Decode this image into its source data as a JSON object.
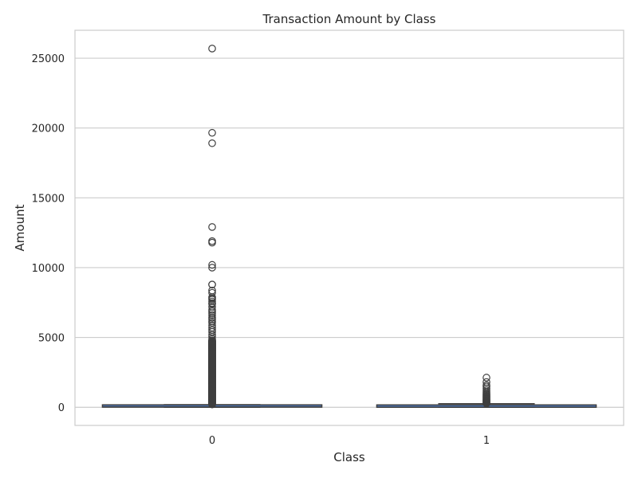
{
  "chart_data": {
    "type": "box",
    "title": "Transaction Amount by Class",
    "xlabel": "Class",
    "ylabel": "Amount",
    "categories": [
      "0",
      "1"
    ],
    "ylim": [
      -1300,
      27000
    ],
    "yticks": [
      0,
      5000,
      10000,
      15000,
      20000,
      25000
    ],
    "grid": true,
    "colors": {
      "box_fill": "#4c72b0",
      "line": "#3f3f3f",
      "grid": "#cccccc",
      "spine": "#cccccc"
    },
    "boxes": [
      {
        "category": "0",
        "min": 0,
        "q1": 5.6,
        "median": 22,
        "q3": 77,
        "whisker_high": 185,
        "outliers": [
          25691,
          19656,
          18910,
          12910,
          11898,
          11789,
          10199,
          10000,
          8790,
          8787,
          8360,
          8200,
          7880,
          7800,
          7712,
          7580,
          7460,
          7400,
          7200,
          6980,
          6870,
          6740,
          6600,
          6420,
          6300,
          6170,
          6050,
          5870,
          5700,
          5540,
          5400,
          5200,
          5050,
          4900
        ]
      },
      {
        "category": "1",
        "min": 0,
        "q1": 1,
        "median": 9,
        "q3": 106,
        "whisker_high": 258,
        "outliers": [
          2125,
          1810,
          1580,
          1480,
          1350,
          1220,
          1100,
          1000,
          930,
          860,
          800,
          740,
          690,
          640,
          590,
          540,
          500,
          460,
          420,
          380,
          340,
          300,
          280
        ]
      }
    ],
    "dense_outlier_column": {
      "category": "0",
      "from": 200,
      "to": 4800
    }
  }
}
